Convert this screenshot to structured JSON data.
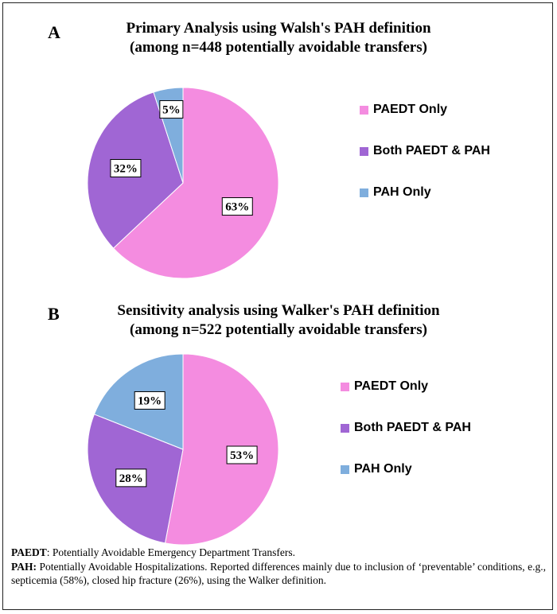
{
  "colors": {
    "paedt_only": "#F48CE0",
    "both": "#A066D4",
    "pah_only": "#7FAEDD"
  },
  "chart_data": [
    {
      "type": "pie",
      "panel": "A",
      "title": "Primary Analysis using Walsh's PAH definition",
      "subtitle": "(among n=448 potentially avoidable transfers)",
      "slices": [
        {
          "name": "PAEDT Only",
          "value": 63,
          "label": "63%"
        },
        {
          "name": "Both PAEDT & PAH",
          "value": 32,
          "label": "32%"
        },
        {
          "name": "PAH Only",
          "value": 5,
          "label": "5%"
        }
      ],
      "legend": [
        "PAEDT Only",
        "Both PAEDT & PAH",
        "PAH Only"
      ],
      "legend_position": "right"
    },
    {
      "type": "pie",
      "panel": "B",
      "title": "Sensitivity analysis using Walker's PAH definition",
      "subtitle": "(among n=522 potentially avoidable transfers)",
      "slices": [
        {
          "name": "PAEDT Only",
          "value": 53,
          "label": "53%"
        },
        {
          "name": "Both PAEDT & PAH",
          "value": 28,
          "label": "28%"
        },
        {
          "name": "PAH Only",
          "value": 19,
          "label": "19%"
        }
      ],
      "legend": [
        "PAEDT Only",
        "Both PAEDT & PAH",
        "PAH Only"
      ],
      "legend_position": "right"
    }
  ],
  "footnote": {
    "paedt_term": "PAEDT",
    "paedt_text": ": Potentially Avoidable Emergency Department Transfers.",
    "pah_term": "PAH:",
    "pah_text": " Potentially Avoidable Hospitalizations. Reported differences mainly due to inclusion of ‘preventable’ conditions, e.g., septicemia (58%), closed hip fracture (26%), using the Walker definition."
  }
}
